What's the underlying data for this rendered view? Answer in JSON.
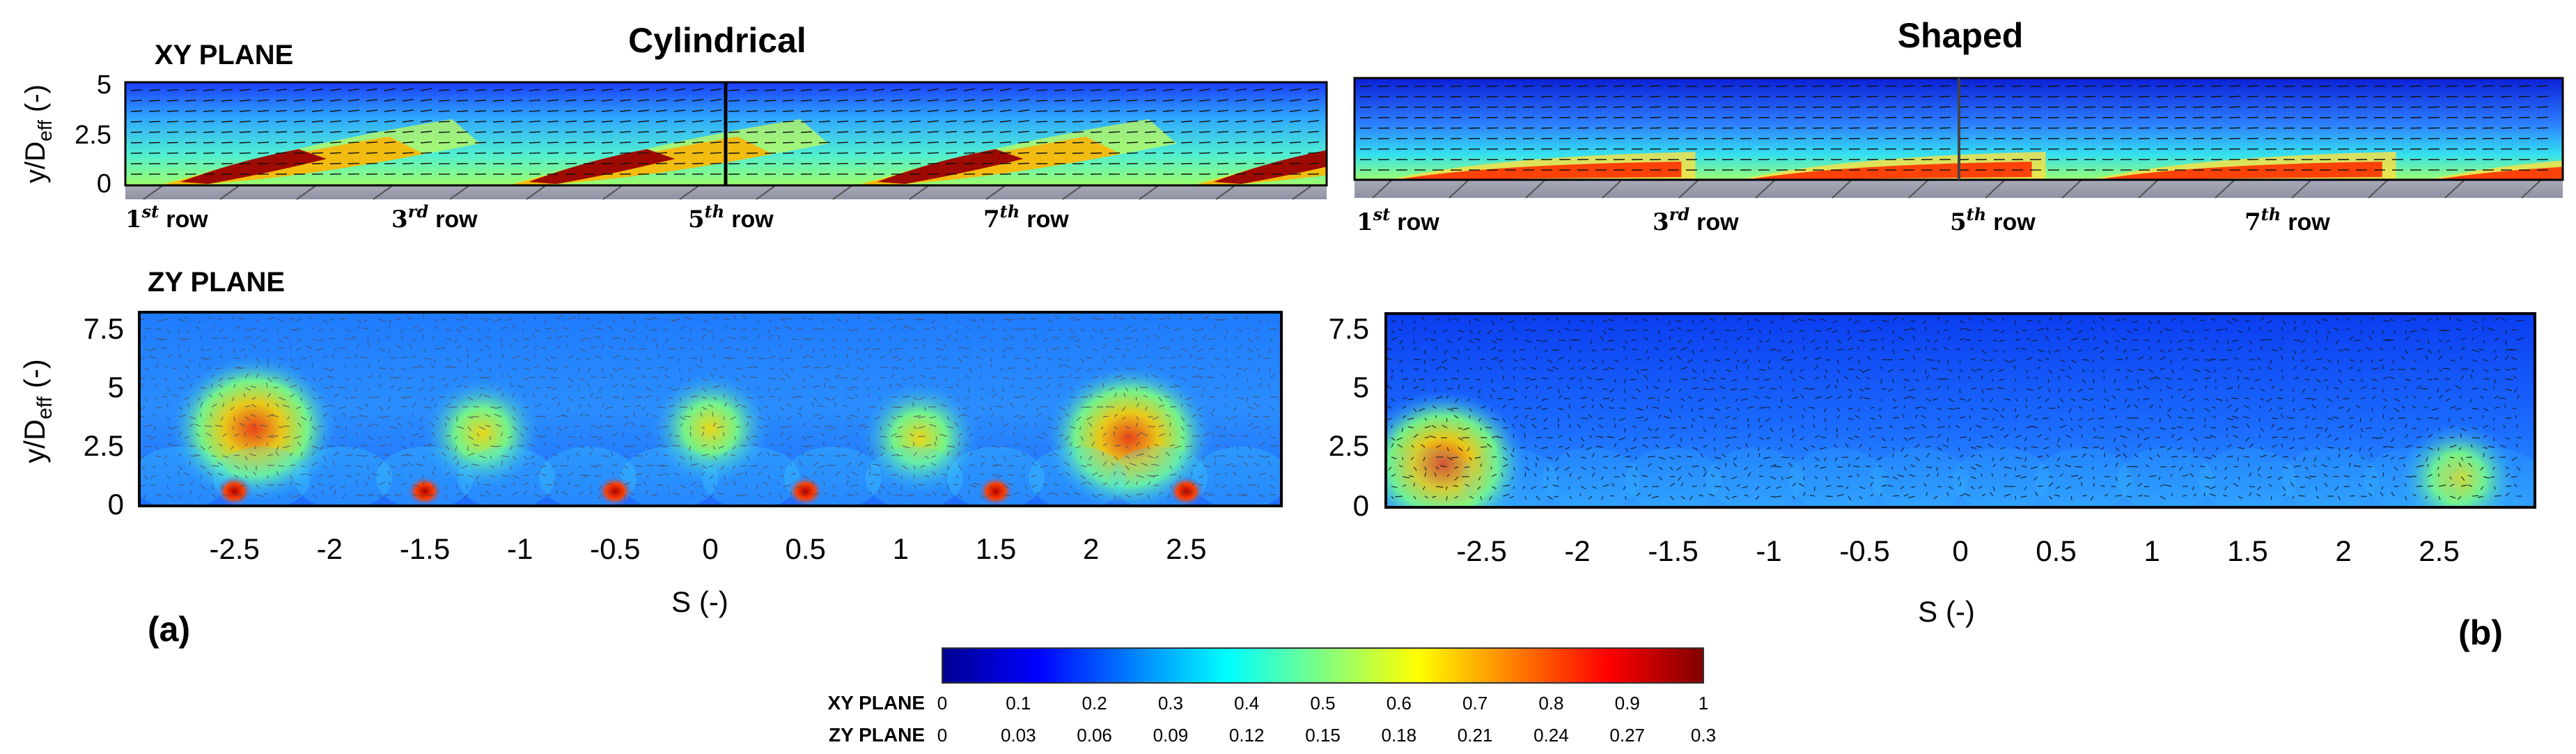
{
  "chart_data": {
    "type": "heatmap",
    "colormap": "jet",
    "colormap_stops": [
      "#00008f",
      "#0000ff",
      "#0080ff",
      "#00ffff",
      "#80ff80",
      "#ffff00",
      "#ff8000",
      "#ff0000",
      "#800000"
    ],
    "colorbar": {
      "xy_label": "XY PLANE",
      "zy_label": "ZY PLANE",
      "xy_ticks": [
        "0",
        "0.1",
        "0.2",
        "0.3",
        "0.4",
        "0.5",
        "0.6",
        "0.7",
        "0.8",
        "0.9",
        "1"
      ],
      "zy_ticks": [
        "0",
        "0.03",
        "0.06",
        "0.09",
        "0.12",
        "0.15",
        "0.18",
        "0.21",
        "0.24",
        "0.27",
        "0.3"
      ],
      "range_xy": [
        0,
        1
      ],
      "range_zy": [
        0,
        0.3
      ]
    },
    "columns": [
      {
        "title": "Cylindrical",
        "panel_letter": "(a)",
        "xy": {
          "plane_label": "XY PLANE",
          "ylabel_main": "y/D",
          "ylabel_sub": "eff",
          "ylabel_unit": " (-)",
          "yticks": [
            "5",
            "2.5",
            "0"
          ],
          "ylim": [
            0,
            5
          ],
          "rows": [
            {
              "num": "1",
              "sup": "st",
              "word": "row"
            },
            {
              "num": "3",
              "sup": "rd",
              "word": "row"
            },
            {
              "num": "5",
              "sup": "th",
              "word": "row"
            },
            {
              "num": "7",
              "sup": "th",
              "word": "row"
            }
          ],
          "jets": [
            {
              "x_norm": 0.04,
              "peak": 0.97
            },
            {
              "x_norm": 0.33,
              "peak": 0.95
            },
            {
              "x_norm": 0.62,
              "peak": 0.96
            },
            {
              "x_norm": 0.9,
              "peak": 0.95
            }
          ]
        },
        "zy": {
          "plane_label": "ZY PLANE",
          "ylabel_main": "y/D",
          "ylabel_sub": "eff",
          "ylabel_unit": " (-)",
          "yticks": [
            "7.5",
            "5",
            "2.5",
            "0"
          ],
          "ylim": [
            0,
            8
          ],
          "xticks": [
            "-2.5",
            "-2",
            "-1.5",
            "-1",
            "-0.5",
            "0",
            "0.5",
            "1",
            "1.5",
            "2",
            "2.5"
          ],
          "xlim": [
            -3,
            3
          ],
          "xlabel": "S (-)",
          "blobs": [
            {
              "s": -2.4,
              "y": 3.2,
              "level": 0.24
            },
            {
              "s": -1.2,
              "y": 3.0,
              "level": 0.2
            },
            {
              "s": 0.0,
              "y": 3.2,
              "level": 0.16
            },
            {
              "s": 1.1,
              "y": 2.8,
              "level": 0.18
            },
            {
              "s": 2.2,
              "y": 2.8,
              "level": 0.23
            }
          ],
          "holes": [
            -2.5,
            -1.5,
            -0.5,
            0.5,
            1.5,
            2.5
          ]
        }
      },
      {
        "title": "Shaped",
        "panel_letter": "(b)",
        "xy": {
          "yticks": [],
          "ylim": [
            0,
            5
          ],
          "rows": [
            {
              "num": "1",
              "sup": "st",
              "word": "row"
            },
            {
              "num": "3",
              "sup": "rd",
              "word": "row"
            },
            {
              "num": "5",
              "sup": "th",
              "word": "row"
            },
            {
              "num": "7",
              "sup": "th",
              "word": "row"
            }
          ],
          "jets": [
            {
              "x_norm": 0.04,
              "peak": 0.88
            },
            {
              "x_norm": 0.33,
              "peak": 0.82
            },
            {
              "x_norm": 0.62,
              "peak": 0.86
            },
            {
              "x_norm": 0.9,
              "peak": 0.92
            }
          ]
        },
        "zy": {
          "yticks": [
            "7.5",
            "5",
            "2.5",
            "0"
          ],
          "ylim": [
            0,
            8
          ],
          "xticks": [
            "-2.5",
            "-2",
            "-1.5",
            "-1",
            "-0.5",
            "0",
            "0.5",
            "1",
            "1.5",
            "2",
            "2.5"
          ],
          "xlim": [
            -3,
            3
          ],
          "xlabel": "S (-)",
          "blobs": [
            {
              "s": -2.7,
              "y": 1.8,
              "level": 0.24
            },
            {
              "s": 2.6,
              "y": 1.2,
              "level": 0.19
            }
          ],
          "holes": []
        }
      }
    ]
  }
}
